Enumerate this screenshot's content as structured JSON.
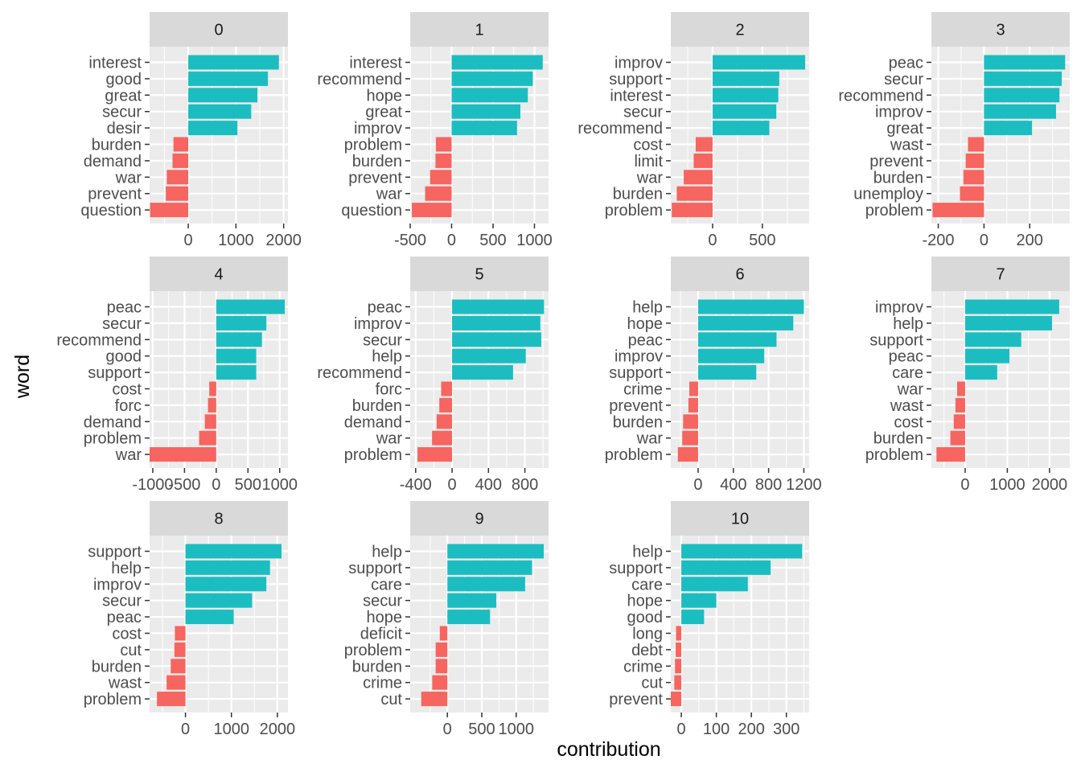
{
  "chart_data": {
    "type": "bar",
    "orientation": "horizontal",
    "xlabel": "contribution",
    "ylabel": "word",
    "grid": true,
    "colors": {
      "positive": "#1CBDC0",
      "negative": "#F6655F",
      "panel_bg": "#EBEBEB",
      "strip_bg": "#D9D9D9",
      "grid": "#FFFFFF"
    },
    "panels": [
      {
        "label": "0",
        "xlim": [
          -810,
          2090
        ],
        "ticks": [
          0,
          1000,
          2000
        ],
        "categories": [
          "interest",
          "good",
          "great",
          "secur",
          "desir",
          "burden",
          "demand",
          "war",
          "prevent",
          "question"
        ],
        "values": [
          1900,
          1670,
          1450,
          1320,
          1030,
          -310,
          -330,
          -450,
          -470,
          -800
        ]
      },
      {
        "label": "1",
        "xlim": [
          -500,
          1170
        ],
        "ticks": [
          -500,
          0,
          500,
          1000
        ],
        "categories": [
          "interest",
          "recommend",
          "hope",
          "great",
          "improv",
          "problem",
          "burden",
          "prevent",
          "war",
          "question"
        ],
        "values": [
          1100,
          980,
          920,
          830,
          790,
          -190,
          -195,
          -260,
          -320,
          -480
        ]
      },
      {
        "label": "2",
        "xlim": [
          -420,
          970
        ],
        "ticks": [
          0,
          500
        ],
        "categories": [
          "improv",
          "support",
          "interest",
          "secur",
          "recommend",
          "cost",
          "limit",
          "war",
          "burden",
          "problem"
        ],
        "values": [
          930,
          670,
          660,
          640,
          570,
          -170,
          -190,
          -290,
          -360,
          -410
        ]
      },
      {
        "label": "3",
        "xlim": [
          -230,
          375
        ],
        "ticks": [
          -200,
          0,
          200
        ],
        "categories": [
          "peac",
          "secur",
          "recommend",
          "improv",
          "great",
          "wast",
          "prevent",
          "burden",
          "unemploy",
          "problem"
        ],
        "values": [
          355,
          340,
          330,
          315,
          210,
          -70,
          -80,
          -90,
          -105,
          -225
        ]
      },
      {
        "label": "4",
        "xlim": [
          -1050,
          1130
        ],
        "ticks": [
          -1000,
          -500,
          0,
          500,
          1000
        ],
        "categories": [
          "peac",
          "secur",
          "recommend",
          "good",
          "support",
          "cost",
          "forc",
          "demand",
          "problem",
          "war"
        ],
        "values": [
          1080,
          790,
          720,
          630,
          630,
          -110,
          -130,
          -180,
          -270,
          -1050
        ]
      },
      {
        "label": "5",
        "xlim": [
          -460,
          1060
        ],
        "ticks": [
          -400,
          0,
          400,
          800
        ],
        "categories": [
          "peac",
          "improv",
          "secur",
          "help",
          "recommend",
          "forc",
          "burden",
          "demand",
          "war",
          "problem"
        ],
        "values": [
          1010,
          970,
          980,
          810,
          670,
          -120,
          -140,
          -170,
          -220,
          -380
        ]
      },
      {
        "label": "6",
        "xlim": [
          -310,
          1260
        ],
        "ticks": [
          0,
          400,
          800,
          1200
        ],
        "categories": [
          "help",
          "hope",
          "peac",
          "improv",
          "support",
          "crime",
          "prevent",
          "burden",
          "war",
          "problem"
        ],
        "values": [
          1200,
          1080,
          890,
          750,
          660,
          -100,
          -110,
          -170,
          -180,
          -230
        ]
      },
      {
        "label": "7",
        "xlim": [
          -800,
          2480
        ],
        "ticks": [
          0,
          1000,
          2000
        ],
        "categories": [
          "improv",
          "help",
          "support",
          "peac",
          "care",
          "war",
          "wast",
          "cost",
          "burden",
          "problem"
        ],
        "values": [
          2230,
          2060,
          1330,
          1050,
          760,
          -190,
          -230,
          -270,
          -350,
          -680
        ]
      },
      {
        "label": "8",
        "xlim": [
          -780,
          2230
        ],
        "ticks": [
          0,
          1000,
          2000
        ],
        "categories": [
          "support",
          "help",
          "improv",
          "secur",
          "peac",
          "cost",
          "cut",
          "burden",
          "wast",
          "problem"
        ],
        "values": [
          2090,
          1840,
          1760,
          1450,
          1050,
          -230,
          -240,
          -320,
          -410,
          -620
        ]
      },
      {
        "label": "9",
        "xlim": [
          -540,
          1470
        ],
        "ticks": [
          0,
          500,
          1000
        ],
        "categories": [
          "help",
          "support",
          "care",
          "secur",
          "hope",
          "deficit",
          "problem",
          "burden",
          "crime",
          "cut"
        ],
        "values": [
          1400,
          1230,
          1130,
          710,
          620,
          -110,
          -170,
          -170,
          -220,
          -380
        ]
      },
      {
        "label": "10",
        "xlim": [
          -30,
          365
        ],
        "ticks": [
          0,
          100,
          200,
          300
        ],
        "categories": [
          "help",
          "support",
          "care",
          "hope",
          "good",
          "long",
          "debt",
          "crime",
          "cut",
          "prevent"
        ],
        "values": [
          345,
          255,
          190,
          100,
          65,
          -15,
          -16,
          -18,
          -20,
          -30
        ]
      }
    ]
  }
}
